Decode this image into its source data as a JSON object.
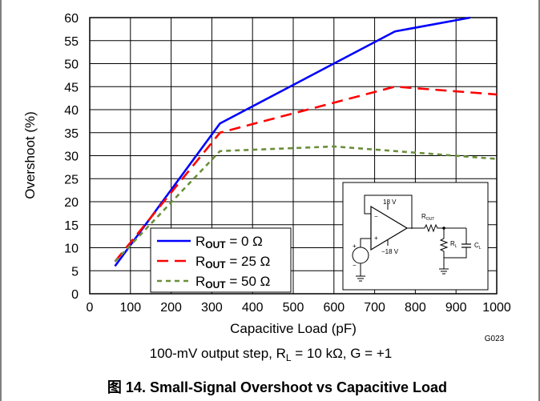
{
  "chart_data": {
    "type": "line",
    "xlabel": "Capacitive Load (pF)",
    "ylabel": "Overshoot (%)",
    "xlim": [
      0,
      1000
    ],
    "ylim": [
      0,
      60
    ],
    "xticks": [
      "0",
      "100",
      "200",
      "300",
      "400",
      "500",
      "600",
      "700",
      "800",
      "900",
      "1000"
    ],
    "yticks": [
      "0",
      "5",
      "10",
      "15",
      "20",
      "25",
      "30",
      "35",
      "40",
      "45",
      "50",
      "55",
      "60"
    ],
    "grid": true,
    "legend_position": "bottom-center",
    "series": [
      {
        "name_main": "R",
        "name_sub": "OUT",
        "name_rest": " = 0  Ω",
        "color": "#0000ff",
        "dash": "solid",
        "x": [
          62,
          320,
          750,
          935
        ],
        "y": [
          6,
          37,
          57,
          60
        ]
      },
      {
        "name_main": "R",
        "name_sub": "OUT",
        "name_rest": " = 25  Ω",
        "color": "#ff0000",
        "dash": "dashed",
        "x": [
          62,
          320,
          750,
          1000
        ],
        "y": [
          7,
          35,
          45,
          43.3
        ]
      },
      {
        "name_main": "R",
        "name_sub": "OUT",
        "name_rest": " = 50  Ω",
        "color": "#6b8e3a",
        "dash": "dotted",
        "x": [
          62,
          320,
          600,
          750,
          1000
        ],
        "y": [
          7,
          31,
          32,
          31,
          29.3
        ]
      }
    ]
  },
  "figure_code": "G023",
  "conditions": {
    "prefix": "100-mV output step, R",
    "sub": "L",
    "rest": " = 10 kΩ, G = +1"
  },
  "caption": "图 14. Small-Signal Overshoot vs Capacitive Load",
  "inset": {
    "label_18v": "18 V",
    "label_m18v": "−18 V",
    "label_rout_main": "R",
    "label_rout_sub": "OUT",
    "label_rl_main": "R",
    "label_rl_sub": "L",
    "label_cl_main": "C",
    "label_cl_sub": "L",
    "plus": "+",
    "minus": "−"
  }
}
